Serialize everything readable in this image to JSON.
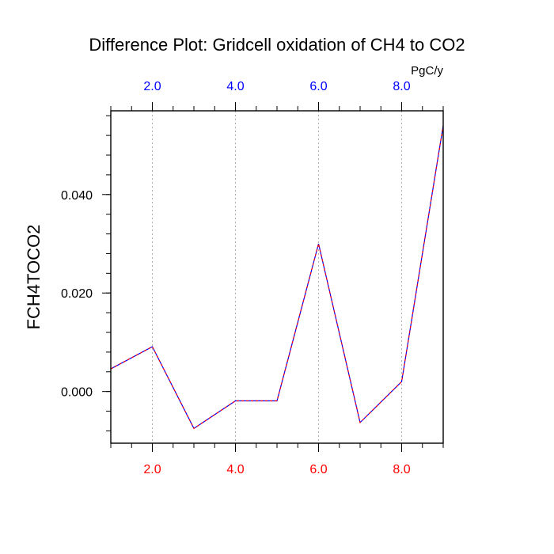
{
  "chart_data": {
    "type": "line",
    "title": "Difference Plot: Gridcell oxidation of CH4 to CO2",
    "ylabel": "FCH4TOCO2",
    "top_axis_unit": "PgC/y",
    "x": [
      1,
      2,
      3,
      4,
      5,
      6,
      7,
      8,
      9
    ],
    "series": [
      {
        "values": [
          0.0046,
          0.0091,
          -0.0075,
          -0.0019,
          -0.0019,
          0.03,
          -0.0063,
          0.002,
          0.054
        ]
      }
    ],
    "xlim": [
      1,
      9
    ],
    "ylim": [
      -0.0105,
      0.057
    ],
    "x_ticks": [
      2.0,
      4.0,
      6.0,
      8.0
    ],
    "x_tick_labels": [
      "2.0",
      "4.0",
      "6.0",
      "8.0"
    ],
    "y_ticks": [
      0.0,
      0.02,
      0.04
    ],
    "y_tick_labels": [
      "0.000",
      "0.020",
      "0.040"
    ],
    "grid": "vertical-dotted",
    "colors": {
      "line_primary": "#0000ff",
      "line_secondary": "#ff0000",
      "bottom_ticks": "#ff0000",
      "top_ticks": "#0000ff",
      "grid": "#b0b0b0",
      "axis": "#000000"
    }
  }
}
